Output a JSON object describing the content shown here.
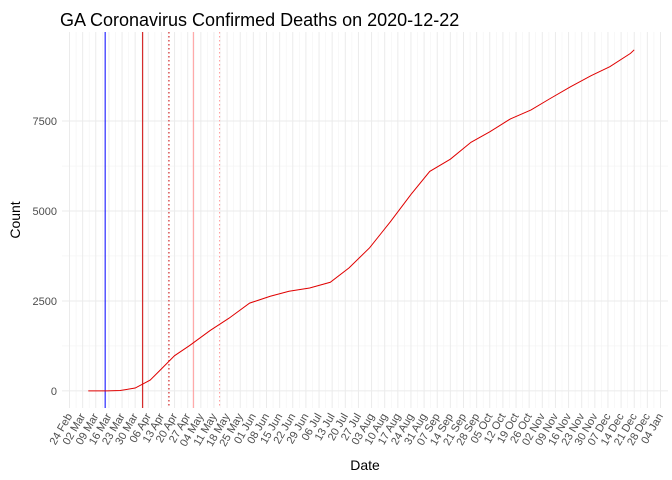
{
  "chart_data": {
    "type": "line",
    "title": "GA Coronavirus Confirmed Deaths on 2020-12-22",
    "x_label": "Date",
    "y_label": "Count",
    "grid": true,
    "xlim": [
      -4,
      319
    ],
    "ylim": [
      -475,
      9975
    ],
    "yticks": [
      0,
      2500,
      5000,
      7500
    ],
    "xticks": [
      {
        "value": 0,
        "label": "24 Feb"
      },
      {
        "value": 7,
        "label": "02 Mar"
      },
      {
        "value": 14,
        "label": "09 Mar"
      },
      {
        "value": 21,
        "label": "16 Mar"
      },
      {
        "value": 28,
        "label": "23 Mar"
      },
      {
        "value": 35,
        "label": "30 Mar"
      },
      {
        "value": 42,
        "label": "06 Apr"
      },
      {
        "value": 49,
        "label": "13 Apr"
      },
      {
        "value": 56,
        "label": "20 Apr"
      },
      {
        "value": 63,
        "label": "27 Apr"
      },
      {
        "value": 70,
        "label": "04 May"
      },
      {
        "value": 77,
        "label": "11 May"
      },
      {
        "value": 84,
        "label": "18 May"
      },
      {
        "value": 91,
        "label": "25 May"
      },
      {
        "value": 98,
        "label": "01 Jun"
      },
      {
        "value": 105,
        "label": "08 Jun"
      },
      {
        "value": 112,
        "label": "15 Jun"
      },
      {
        "value": 119,
        "label": "22 Jun"
      },
      {
        "value": 126,
        "label": "29 Jun"
      },
      {
        "value": 133,
        "label": "06 Jul"
      },
      {
        "value": 140,
        "label": "13 Jul"
      },
      {
        "value": 147,
        "label": "20 Jul"
      },
      {
        "value": 154,
        "label": "27 Jul"
      },
      {
        "value": 161,
        "label": "03 Aug"
      },
      {
        "value": 168,
        "label": "10 Aug"
      },
      {
        "value": 175,
        "label": "17 Aug"
      },
      {
        "value": 182,
        "label": "24 Aug"
      },
      {
        "value": 189,
        "label": "31 Aug"
      },
      {
        "value": 196,
        "label": "07 Sep"
      },
      {
        "value": 203,
        "label": "14 Sep"
      },
      {
        "value": 210,
        "label": "21 Sep"
      },
      {
        "value": 217,
        "label": "28 Sep"
      },
      {
        "value": 224,
        "label": "05 Oct"
      },
      {
        "value": 231,
        "label": "12 Oct"
      },
      {
        "value": 238,
        "label": "19 Oct"
      },
      {
        "value": 245,
        "label": "26 Oct"
      },
      {
        "value": 252,
        "label": "02 Nov"
      },
      {
        "value": 259,
        "label": "09 Nov"
      },
      {
        "value": 266,
        "label": "16 Nov"
      },
      {
        "value": 273,
        "label": "23 Nov"
      },
      {
        "value": 280,
        "label": "30 Nov"
      },
      {
        "value": 287,
        "label": "07 Dec"
      },
      {
        "value": 294,
        "label": "14 Dec"
      },
      {
        "value": 301,
        "label": "21 Dec"
      },
      {
        "value": 308,
        "label": "28 Dec"
      },
      {
        "value": 315,
        "label": "04 Jan"
      }
    ],
    "vlines": [
      {
        "x": 19,
        "color": "#0000ff",
        "dash": "solid"
      },
      {
        "x": 39,
        "color": "#cc0000",
        "dash": "solid"
      },
      {
        "x": 53,
        "color": "#cc0000",
        "dash": "dotted"
      },
      {
        "x": 66,
        "color": "#ff9999",
        "dash": "solid"
      },
      {
        "x": 80,
        "color": "#ff9999",
        "dash": "dotted"
      }
    ],
    "series": [
      {
        "name": "Deaths",
        "color": "#e00000",
        "x": [
          10,
          20,
          27,
          35,
          43,
          48,
          56,
          64,
          75,
          85,
          96,
          107,
          117,
          128,
          139,
          149,
          160,
          171,
          182,
          192,
          203,
          214,
          224,
          235,
          246,
          256,
          267,
          278,
          288,
          299,
          301
        ],
        "values": [
          0,
          0,
          10,
          80,
          300,
          560,
          980,
          1260,
          1680,
          2020,
          2440,
          2630,
          2770,
          2860,
          3020,
          3420,
          3980,
          4700,
          5460,
          6100,
          6440,
          6910,
          7200,
          7560,
          7810,
          8120,
          8450,
          8760,
          9010,
          9380,
          9480
        ]
      }
    ]
  }
}
